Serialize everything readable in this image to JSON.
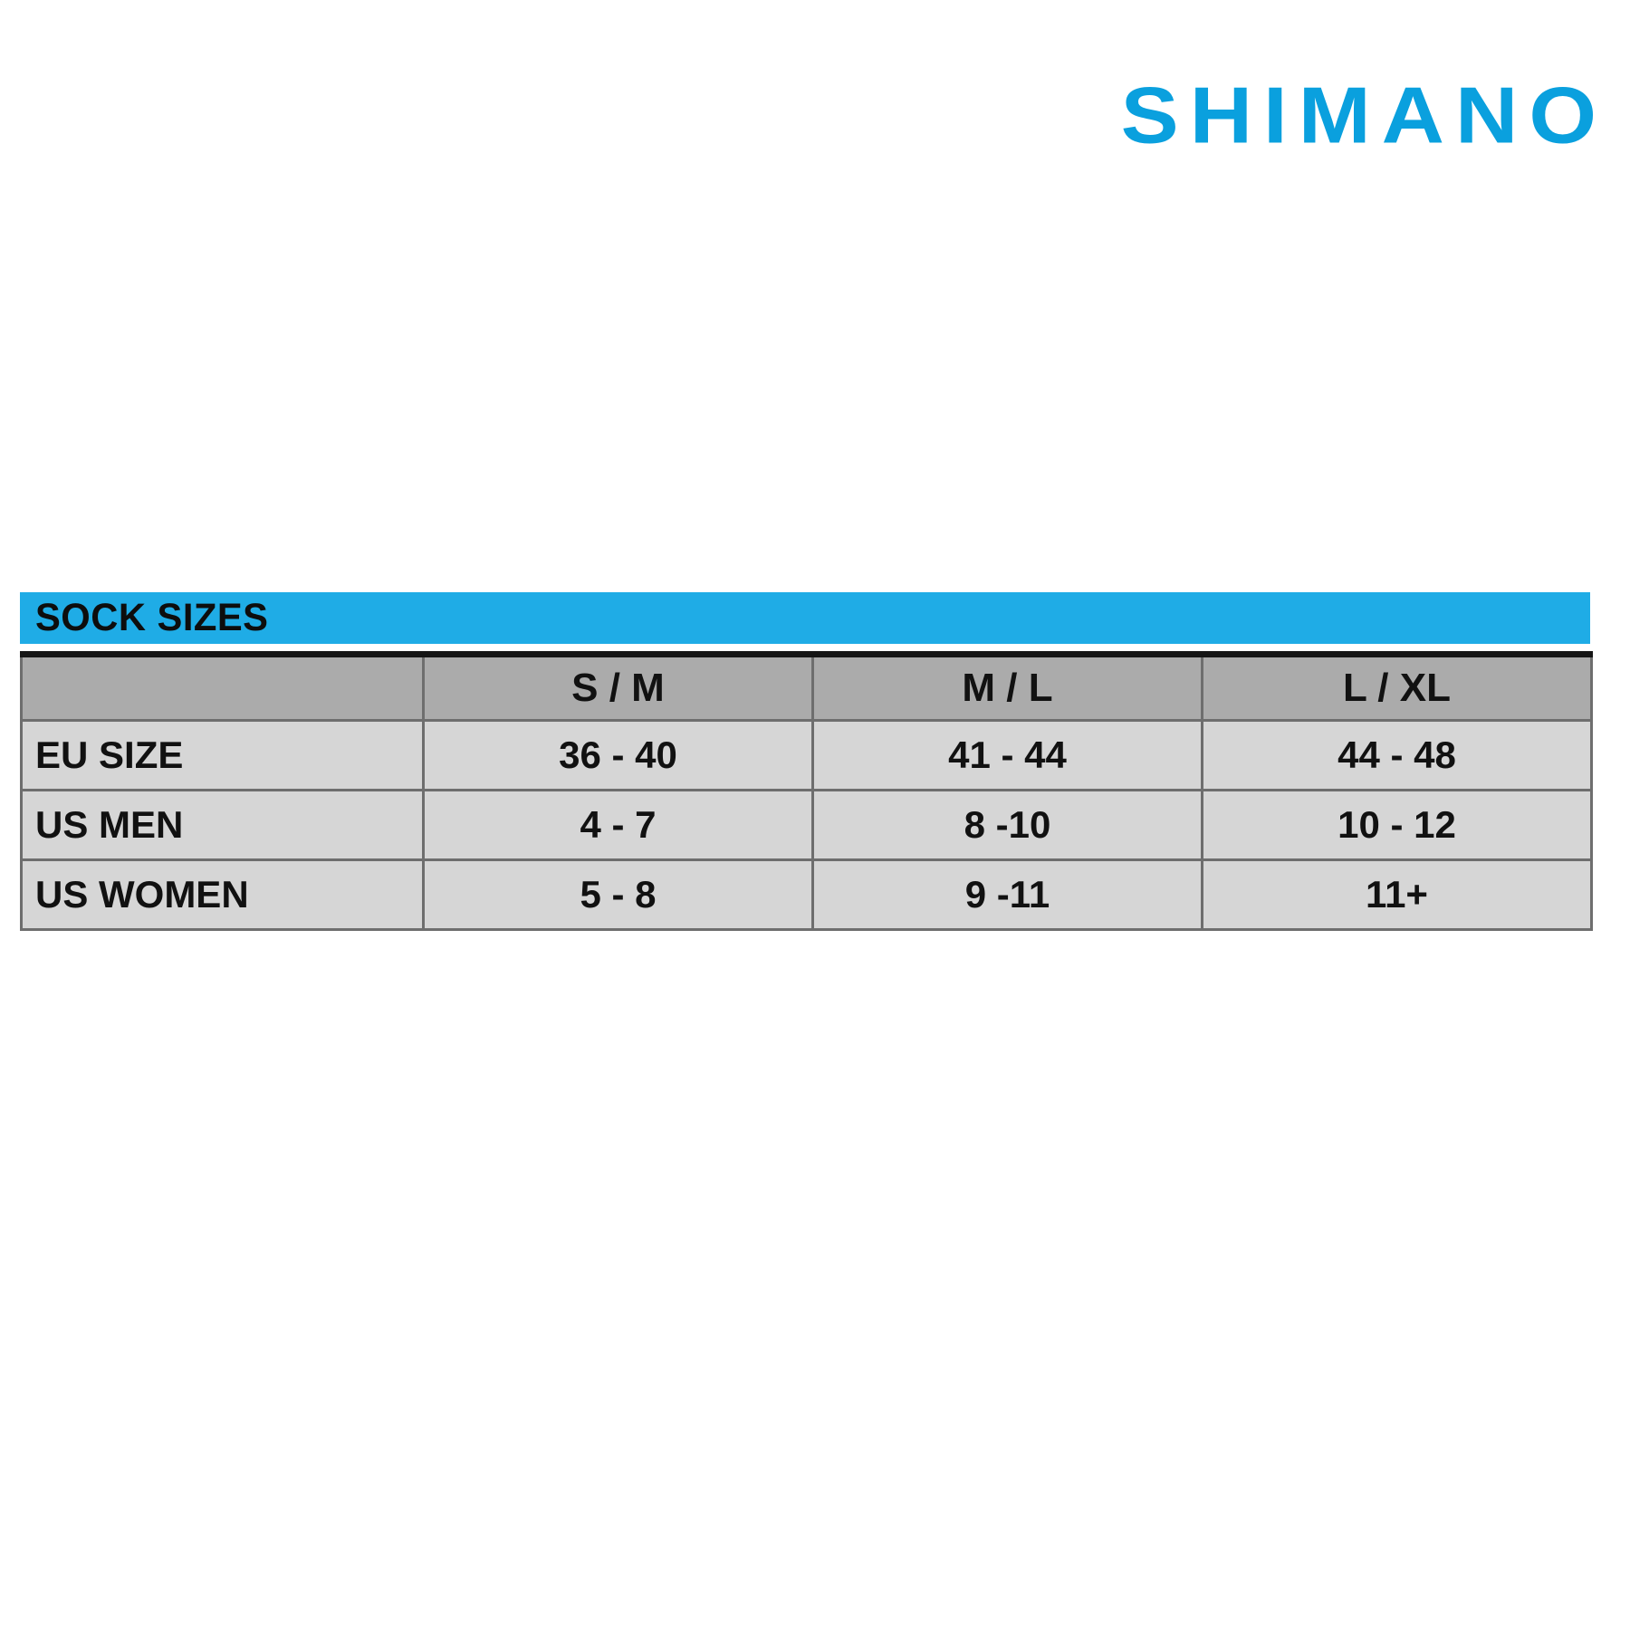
{
  "logo": {
    "text": "SHIMANO"
  },
  "colors": {
    "brand_blue": "#0aa0de",
    "title_bar_blue": "#1face6",
    "header_gray": "#ababab",
    "row_gray": "#d6d6d6"
  },
  "chart_data": {
    "type": "table",
    "title": "SOCK SIZES",
    "columns": [
      "",
      "S / M",
      "M / L",
      "L / XL"
    ],
    "rows": [
      [
        "EU SIZE",
        "36 - 40",
        "41 - 44",
        "44 - 48"
      ],
      [
        "US MEN",
        "4 - 7",
        "8 -10",
        "10 - 12"
      ],
      [
        "US WOMEN",
        "5 - 8",
        "9 -11",
        "11+"
      ]
    ]
  }
}
